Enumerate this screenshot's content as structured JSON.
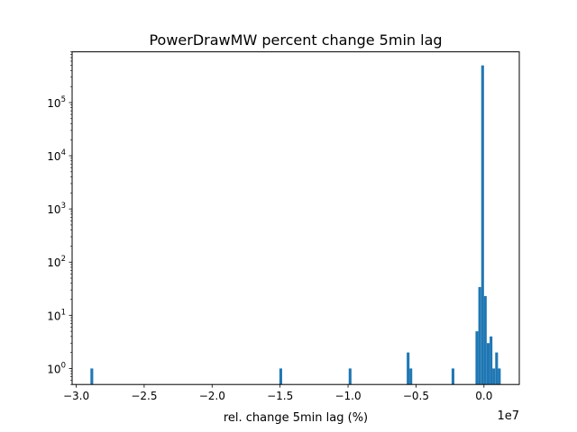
{
  "chart_data": {
    "type": "bar",
    "title": "PowerDrawMW percent change 5min lag",
    "xlabel": "rel. change 5min lag (%)",
    "ylabel": "",
    "x_offset_label": "1e7",
    "x_scale_factor": 10000000,
    "xlim": [
      -30.3,
      2.6
    ],
    "ylim": [
      0.5,
      900000
    ],
    "yscale": "log",
    "x_ticks": [
      {
        "value": -3.0,
        "label": "−3.0"
      },
      {
        "value": -2.5,
        "label": "−2.5"
      },
      {
        "value": -2.0,
        "label": "−2.0"
      },
      {
        "value": -1.5,
        "label": "−1.5"
      },
      {
        "value": -1.0,
        "label": "−1.0"
      },
      {
        "value": -0.5,
        "label": "−0.5"
      },
      {
        "value": 0.0,
        "label": "0.0"
      }
    ],
    "y_ticks": [
      {
        "exp": 0,
        "base": "10",
        "sup": "0"
      },
      {
        "exp": 1,
        "base": "10",
        "sup": "1"
      },
      {
        "exp": 2,
        "base": "10",
        "sup": "2"
      },
      {
        "exp": 3,
        "base": "10",
        "sup": "3"
      },
      {
        "exp": 4,
        "base": "10",
        "sup": "4"
      },
      {
        "exp": 5,
        "base": "10",
        "sup": "5"
      }
    ],
    "bin_width": 0.0205,
    "bar_color": "#1f77b4",
    "bins": [
      {
        "x": -2.885,
        "count": 1
      },
      {
        "x": -1.495,
        "count": 1
      },
      {
        "x": -0.985,
        "count": 1
      },
      {
        "x": -0.558,
        "count": 2
      },
      {
        "x": -0.538,
        "count": 1
      },
      {
        "x": -0.228,
        "count": 1
      },
      {
        "x": -0.052,
        "count": 5
      },
      {
        "x": -0.031,
        "count": 34
      },
      {
        "x": -0.01,
        "count": 500000
      },
      {
        "x": 0.01,
        "count": 23
      },
      {
        "x": 0.031,
        "count": 3
      },
      {
        "x": 0.052,
        "count": 4
      },
      {
        "x": 0.072,
        "count": 1
      },
      {
        "x": 0.093,
        "count": 2
      },
      {
        "x": 0.113,
        "count": 1
      }
    ]
  }
}
